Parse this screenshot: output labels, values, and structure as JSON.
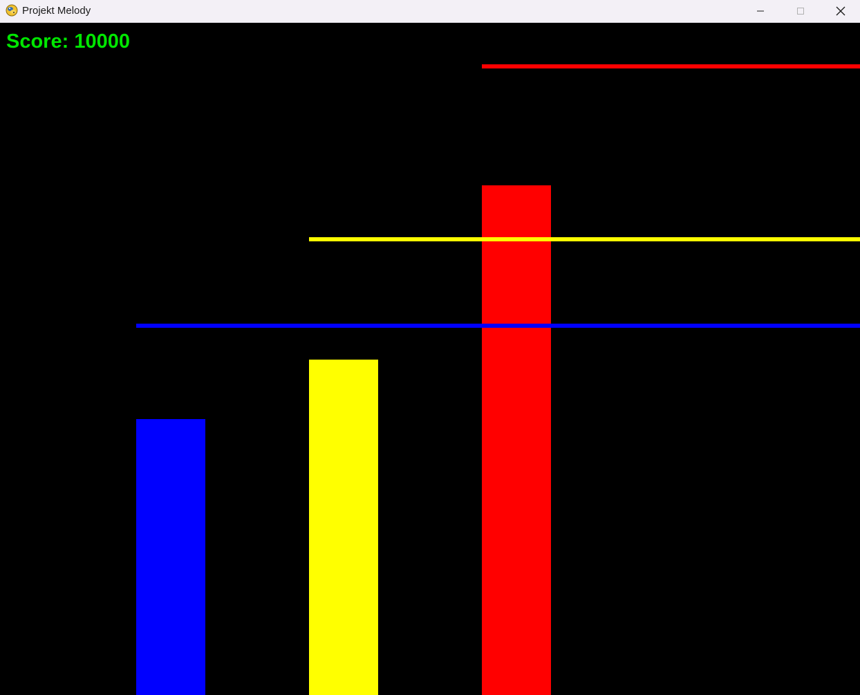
{
  "window": {
    "title": "Projekt Melody",
    "app_icon": "python-snake-icon",
    "controls": {
      "minimize_icon": "minimize-icon",
      "maximize_icon": "maximize-icon",
      "close_icon": "close-icon"
    }
  },
  "game": {
    "background_color": "#000000",
    "score_text": "Score: 10000",
    "score_color": "#00e600",
    "lanes": [
      {
        "name": "blue",
        "color": "#0000ff"
      },
      {
        "name": "yellow",
        "color": "#ffff00"
      },
      {
        "name": "red",
        "color": "#ff0000"
      }
    ]
  }
}
